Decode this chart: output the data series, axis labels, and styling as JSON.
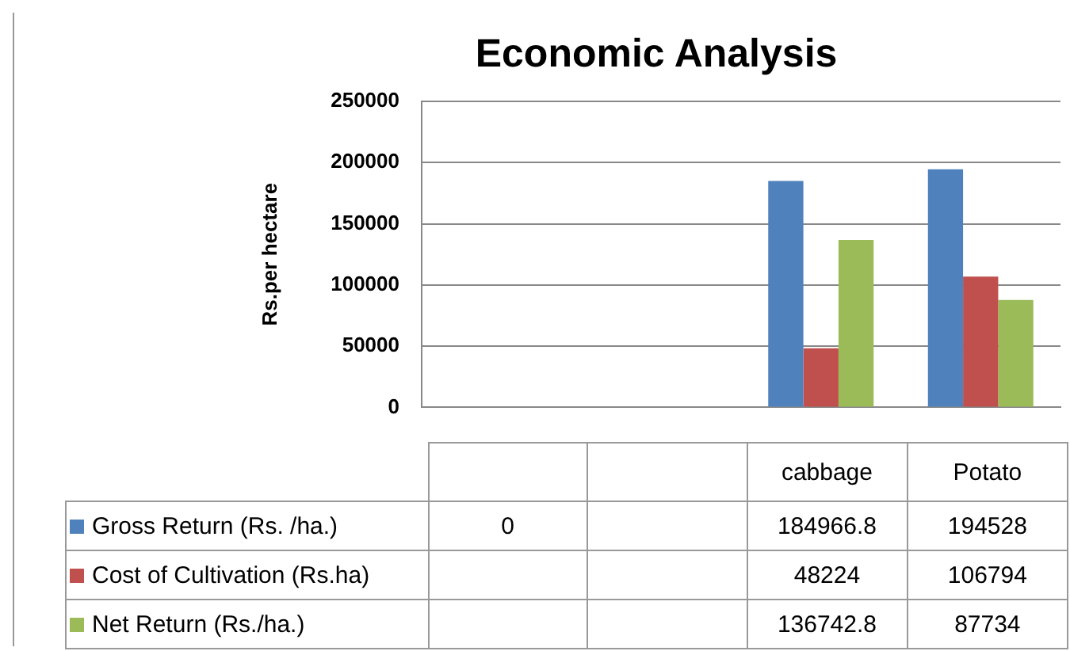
{
  "chart_data": {
    "type": "bar",
    "title": "Economic Analysis",
    "ylabel": "Rs.per hectare",
    "categories": [
      null,
      null,
      "cabbage",
      "Potato"
    ],
    "series": [
      {
        "name": "Gross Return (Rs. /ha.)",
        "color": "#4f81bd",
        "values": [
          0,
          null,
          184966.8,
          194528
        ]
      },
      {
        "name": "Cost of Cultivation (Rs.ha)",
        "color": "#c0504d",
        "values": [
          null,
          null,
          48224,
          106794
        ]
      },
      {
        "name": "Net Return (Rs./ha.)",
        "color": "#9bbb59",
        "values": [
          null,
          null,
          136742.8,
          87734
        ]
      }
    ],
    "ylim": [
      0,
      250000
    ],
    "yticks": [
      0,
      50000,
      100000,
      150000,
      200000,
      250000
    ],
    "grid": "y",
    "legend": "bottom",
    "data_labels": true
  }
}
